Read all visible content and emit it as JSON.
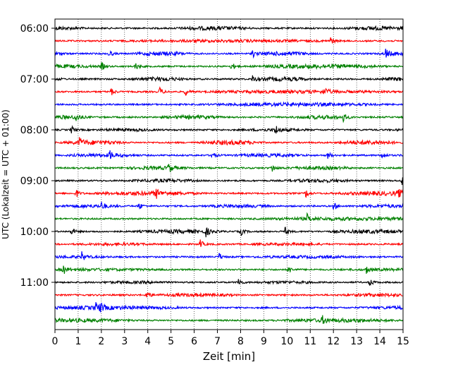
{
  "chart_data": {
    "type": "line",
    "title": "",
    "xlabel": "Zeit  [min]",
    "ylabel": "UTC (Lokalzeit = UTC + 01:00)",
    "xlim": [
      0,
      15
    ],
    "xticks": [
      0,
      1,
      2,
      3,
      4,
      5,
      6,
      7,
      8,
      9,
      10,
      11,
      12,
      13,
      14,
      15
    ],
    "ytick_labels": [
      "06:00",
      "07:00",
      "08:00",
      "09:00",
      "10:00",
      "11:00"
    ],
    "grid": "vertical dotted",
    "legend": "none",
    "trace_colors": [
      "#000000",
      "#ff0000",
      "#0000ff",
      "#008000"
    ],
    "series": [
      {
        "start": "06:00",
        "color": "#000000",
        "events": []
      },
      {
        "start": "06:15",
        "color": "#ff0000",
        "events": [
          11.85
        ]
      },
      {
        "start": "06:30",
        "color": "#0000ff",
        "events": [
          2.3,
          8.5,
          14.25
        ]
      },
      {
        "start": "06:45",
        "color": "#008000",
        "events": [
          2.0,
          3.45,
          7.6
        ]
      },
      {
        "start": "07:00",
        "color": "#000000",
        "events": [
          8.5
        ]
      },
      {
        "start": "07:15",
        "color": "#ff0000",
        "events": [
          2.4,
          4.5,
          5.6,
          11.6
        ]
      },
      {
        "start": "07:30",
        "color": "#0000ff",
        "events": []
      },
      {
        "start": "07:45",
        "color": "#008000",
        "events": [
          0.9,
          12.4
        ]
      },
      {
        "start": "08:00",
        "color": "#000000",
        "events": [
          0.7,
          9.5
        ]
      },
      {
        "start": "08:15",
        "color": "#ff0000",
        "events": [
          1.05
        ]
      },
      {
        "start": "08:30",
        "color": "#0000ff",
        "events": [
          2.35,
          6.75,
          11.75,
          14.1
        ]
      },
      {
        "start": "08:45",
        "color": "#008000",
        "events": [
          4.9,
          9.35
        ]
      },
      {
        "start": "09:00",
        "color": "#000000",
        "events": [
          14.95
        ]
      },
      {
        "start": "09:15",
        "color": "#ff0000",
        "events": [
          0.9,
          4.35,
          10.8,
          14.8
        ]
      },
      {
        "start": "09:30",
        "color": "#0000ff",
        "events": [
          2.0,
          3.6,
          12.0
        ]
      },
      {
        "start": "09:45",
        "color": "#008000",
        "events": [
          10.85
        ]
      },
      {
        "start": "10:00",
        "color": "#000000",
        "events": [
          0.7,
          6.5,
          8.0,
          9.9
        ]
      },
      {
        "start": "10:15",
        "color": "#ff0000",
        "events": [
          6.25
        ]
      },
      {
        "start": "10:30",
        "color": "#0000ff",
        "events": [
          1.15,
          7.05
        ]
      },
      {
        "start": "10:45",
        "color": "#008000",
        "events": [
          0.35,
          10.05,
          13.4
        ]
      },
      {
        "start": "11:00",
        "color": "#000000",
        "events": [
          7.9,
          13.55
        ]
      },
      {
        "start": "11:15",
        "color": "#ff0000",
        "events": [
          3.95
        ]
      },
      {
        "start": "11:30",
        "color": "#0000ff",
        "events": [
          1.75,
          1.95
        ]
      },
      {
        "start": "11:45",
        "color": "#008000",
        "events": [
          11.5
        ]
      }
    ]
  }
}
